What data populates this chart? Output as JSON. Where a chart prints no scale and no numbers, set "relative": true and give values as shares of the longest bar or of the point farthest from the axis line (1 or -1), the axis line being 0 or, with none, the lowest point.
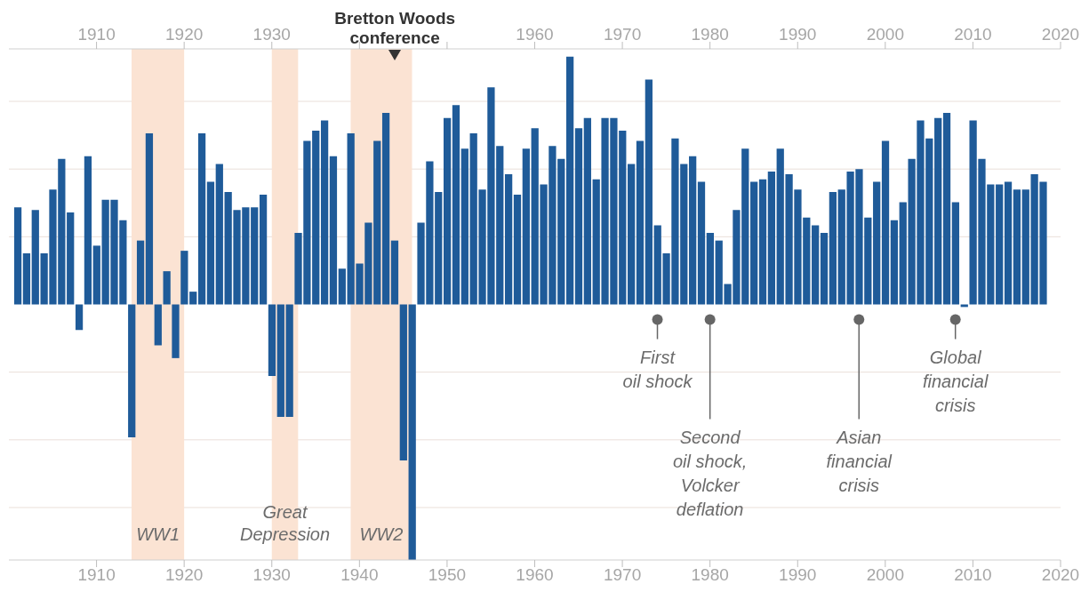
{
  "chart_data": {
    "type": "bar",
    "relative": true,
    "color": "#1f5b99",
    "x": [
      1901,
      1902,
      1903,
      1904,
      1905,
      1906,
      1907,
      1908,
      1909,
      1910,
      1911,
      1912,
      1913,
      1914,
      1915,
      1916,
      1917,
      1918,
      1919,
      1920,
      1921,
      1922,
      1923,
      1924,
      1925,
      1926,
      1927,
      1928,
      1929,
      1930,
      1931,
      1932,
      1933,
      1934,
      1935,
      1936,
      1937,
      1938,
      1939,
      1940,
      1941,
      1942,
      1943,
      1944,
      1945,
      1946,
      1947,
      1948,
      1949,
      1950,
      1951,
      1952,
      1953,
      1954,
      1955,
      1956,
      1957,
      1958,
      1959,
      1960,
      1961,
      1962,
      1963,
      1964,
      1965,
      1966,
      1967,
      1968,
      1969,
      1970,
      1971,
      1972,
      1973,
      1974,
      1975,
      1976,
      1977,
      1978,
      1979,
      1980,
      1981,
      1982,
      1983,
      1984,
      1985,
      1986,
      1987,
      1988,
      1989,
      1990,
      1991,
      1992,
      1993,
      1994,
      1995,
      1996,
      1997,
      1998,
      1999,
      2000,
      2001,
      2002,
      2003,
      2004,
      2005,
      2006,
      2007,
      2008,
      2009,
      2010,
      2011,
      2012,
      2013,
      2014,
      2015,
      2016,
      2017,
      2018
    ],
    "values": [
      0.38,
      0.2,
      0.37,
      0.2,
      0.45,
      0.57,
      0.36,
      -0.1,
      0.58,
      0.23,
      0.41,
      0.41,
      0.33,
      -0.52,
      0.25,
      0.67,
      -0.16,
      0.13,
      -0.21,
      0.21,
      0.05,
      0.67,
      0.48,
      0.55,
      0.44,
      0.37,
      0.38,
      0.38,
      0.43,
      -0.28,
      -0.44,
      -0.44,
      0.28,
      0.64,
      0.68,
      0.72,
      0.58,
      0.14,
      0.67,
      0.16,
      0.32,
      0.64,
      0.75,
      0.25,
      -0.61,
      -1,
      0.32,
      0.56,
      0.44,
      0.73,
      0.78,
      0.61,
      0.67,
      0.45,
      0.85,
      0.62,
      0.51,
      0.43,
      0.61,
      0.69,
      0.47,
      0.62,
      0.57,
      0.97,
      0.69,
      0.73,
      0.49,
      0.73,
      0.73,
      0.68,
      0.55,
      0.64,
      0.88,
      0.31,
      0.2,
      0.65,
      0.55,
      0.58,
      0.48,
      0.28,
      0.25,
      0.08,
      0.37,
      0.61,
      0.48,
      0.49,
      0.52,
      0.61,
      0.51,
      0.45,
      0.34,
      0.31,
      0.28,
      0.44,
      0.45,
      0.52,
      0.53,
      0.34,
      0.48,
      0.64,
      0.33,
      0.4,
      0.57,
      0.72,
      0.65,
      0.73,
      0.75,
      0.4,
      -0.01,
      0.72,
      0.57,
      0.47,
      0.47,
      0.48,
      0.45,
      0.45,
      0.51,
      0.48
    ],
    "xlim": [
      1900,
      2020
    ],
    "xticks": [
      1910,
      1920,
      1930,
      1940,
      1950,
      1960,
      1970,
      1980,
      1990,
      2000,
      2010,
      2020
    ],
    "x2lim": [
      1900,
      2020
    ],
    "x2ticks": [
      1910,
      1920,
      1930,
      {
        "value": 1940,
        "label": null
      },
      {
        "value": 1950,
        "label": null
      },
      1960,
      1970,
      1980,
      1990,
      2000,
      2010,
      2020
    ],
    "grid": "y",
    "bands": [
      {
        "axis": "x",
        "from": 1914,
        "to": 1920,
        "label": "WW1",
        "color": "#fbe3d3"
      },
      {
        "axis": "x",
        "from": 1930,
        "to": 1933,
        "label": "Great Depression",
        "color": "#fbe3d3"
      },
      {
        "axis": "x",
        "from": 1939,
        "to": 1946,
        "label": "WW2",
        "color": "#fbe3d3"
      }
    ],
    "annotations": [
      "Bretton Woods\nconference",
      {
        "text": "First\noil shock",
        "x": 1974
      },
      {
        "text": "Second\noil shock,\nVolcker\ndeflation",
        "x": 1980
      },
      {
        "text": "Asian\nfinancial\ncrisis",
        "x": 1997
      },
      {
        "text": "Global\nfinancial\ncrisis",
        "x": 2008
      }
    ]
  }
}
